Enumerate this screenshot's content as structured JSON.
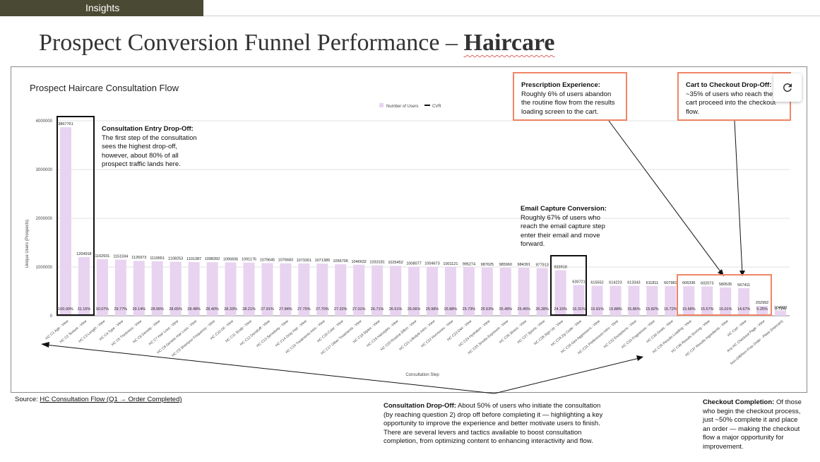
{
  "header": {
    "section": "Insights"
  },
  "page": {
    "title_prefix": "Prospect Conversion Funnel Performance – ",
    "title_bold": "Haircare"
  },
  "chart_data": {
    "type": "bar",
    "title": "Prospect Haircare Consultation Flow",
    "xlabel": "Consultation Step",
    "ylabel": "Unique Users (Prospects)",
    "ylim": [
      0,
      4000000
    ],
    "yticks": [
      "0",
      "1000000",
      "2000000",
      "3000000",
      "4000000"
    ],
    "legend": [
      "Number of Users",
      "CVR"
    ],
    "legend_position": "top-center",
    "grid": true,
    "bar_color": "#e8d3f0",
    "categories": [
      "HC C1 Age - View",
      "HC C2 Texture - View",
      "HC C3 Length - View",
      "HC C4 Type - View",
      "HC C5 Thickness - View",
      "HC C6 Density - View",
      "HC C7 Hair Loss - View",
      "HC C8 Genetic Hair Loss - View",
      "HC C9 Shampoo Frequency - View",
      "HC C10 Oil - View",
      "HC C11 Scalp - View",
      "HC C12 Dandruff - View",
      "HC C13 Sensitivity - View",
      "HC C14 Gray Hair - View",
      "HC C15 Treatments Intro - View",
      "HC C16 Color - View",
      "HC C17 Other Treatments - View",
      "HC C18 Styles - View",
      "HC C19 Hairstyles - View",
      "HC C20 Routine Effort - View",
      "HC C21 Lifestyle Intro - View",
      "HC C22 Hormones - View",
      "HC C23 Diet - View",
      "HC C24 Hydration - View",
      "HC C25 Smoke Exposure - View",
      "HC C26 Stress - View",
      "HC C27 Sports - View",
      "HC C28 Sign Up - View",
      "HC C29 Zip Code - View",
      "HC C30 Geo Aggressors - View",
      "HC C31 Preferences Intro - View",
      "HC C32 Exceptions - View",
      "HC C33 Fragrances - View",
      "HC C34 Goals - View",
      "HC C35 Results Loading - View",
      "HC C36 Results Scoring - View",
      "HC C37 Results Ingredients - View",
      "HC Cart - View",
      "Any HC Checkout Page - View",
      "Non-Gift/Non-Free Order - Place (Haircare)"
    ],
    "values": [
      3867761,
      1204918,
      1162931,
      1151594,
      1126973,
      1119551,
      1108253,
      1101387,
      1098392,
      1095606,
      1091176,
      1079645,
      1076683,
      1073261,
      1071389,
      1056706,
      1046632,
      1033181,
      1025452,
      1008077,
      1004673,
      1001121,
      995274,
      987625,
      985960,
      984391,
      977913,
      933918,
      630721,
      615552,
      614223,
      613343,
      611811,
      607981,
      606336,
      602073,
      580535,
      567411,
      202992,
      104908
    ],
    "cvr": [
      "100.00%",
      "31.15%",
      "30.07%",
      "29.77%",
      "29.14%",
      "28.95%",
      "28.65%",
      "28.48%",
      "28.40%",
      "28.33%",
      "28.21%",
      "27.91%",
      "27.84%",
      "27.75%",
      "27.70%",
      "27.32%",
      "27.01%",
      "26.71%",
      "26.51%",
      "26.06%",
      "25.98%",
      "25.88%",
      "25.73%",
      "25.53%",
      "25.49%",
      "25.45%",
      "25.28%",
      "24.15%",
      "16.31%",
      "15.91%",
      "15.88%",
      "15.86%",
      "15.82%",
      "15.72%",
      "15.68%",
      "15.57%",
      "15.01%",
      "14.67%",
      "5.25%",
      "2.71%"
    ]
  },
  "annotations": {
    "entry": {
      "heading": "Consultation Entry Drop-Off:",
      "body": "The first step of the consultation sees the highest drop-off, however, about 80% of all prospect traffic lands here."
    },
    "email": {
      "heading": "Email Capture Conversion:",
      "body": "Roughly 67% of users who reach the email capture step enter their email and move forward."
    },
    "prescription": {
      "heading": "Prescription Experience:",
      "body": "Roughly 6% of users abandon the routine flow from the results loading screen to the cart."
    },
    "cart": {
      "heading": "Cart to Checkout Drop-Off:",
      "body": "O ~35% of users who reach the cart proceed into the checkout flow."
    },
    "dropoff": {
      "heading": "Consultation Drop-Off:",
      "body": "About 50% of users who initiate the consultation (by reaching question 2) drop off before completing it — highlighting a key opportunity to improve the experience and better motivate users to finish. There are several levers and tactics available to boost consultation completion, from optimizing content to enhancing interactivity and flow."
    },
    "checkout": {
      "heading": "Checkout Completion:",
      "body": "Of those who begin the checkout process, just ~50% complete it and place an order — making the checkout flow a major opportunity for improvement."
    }
  },
  "source": {
    "prefix": "Source: ",
    "link": "HC Consultation Flow (Q1 → Order Completed)"
  },
  "colors": {
    "header_bg": "#4a4a34",
    "highlight_box": "#f08566",
    "bar": "#e8d3f0"
  },
  "icons": {
    "refresh": "refresh-icon"
  }
}
